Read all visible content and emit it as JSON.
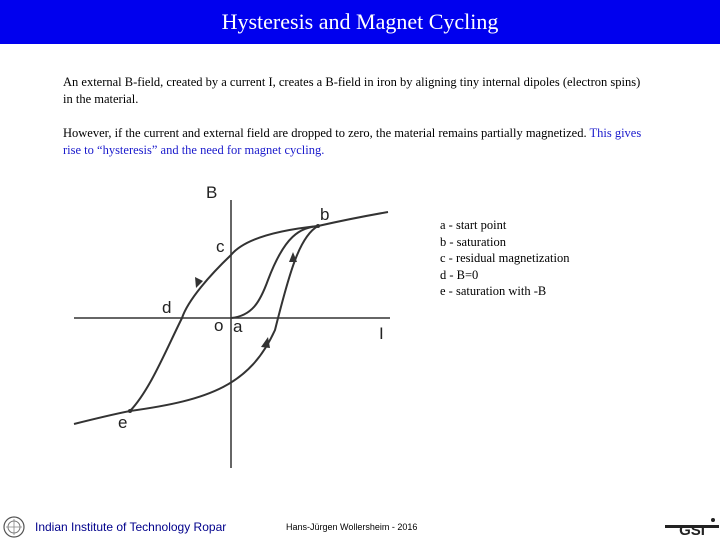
{
  "slide": {
    "title": "Hysteresis and Magnet Cycling",
    "para1": "An external B-field, created by a current I, creates a B-field in iron by aligning tiny internal dipoles (electron spins) in the material.",
    "para2_black": "However, if the current and external field are dropped to zero, the material remains partially magnetized.",
    "para2_blue": " This gives rise to “hysteresis” and the need for magnet cycling."
  },
  "diagram": {
    "axis_b": "B",
    "axis_i": "I",
    "point_o": "o",
    "point_a": "a",
    "point_b": "b",
    "point_c": "c",
    "point_d": "d",
    "point_e": "e"
  },
  "legend": [
    "a - start point",
    "b - saturation",
    "c - residual magnetization",
    "d - B=0",
    "e - saturation with -B"
  ],
  "footer": {
    "institute": "Indian Institute of Technology Ropar",
    "author": "Hans-Jürgen Wollersheim - 2016",
    "logo_text": "GSI"
  },
  "colors": {
    "title_bar": "#0000ee",
    "highlight_text": "#1a1acc",
    "footer_text": "#00008b"
  }
}
